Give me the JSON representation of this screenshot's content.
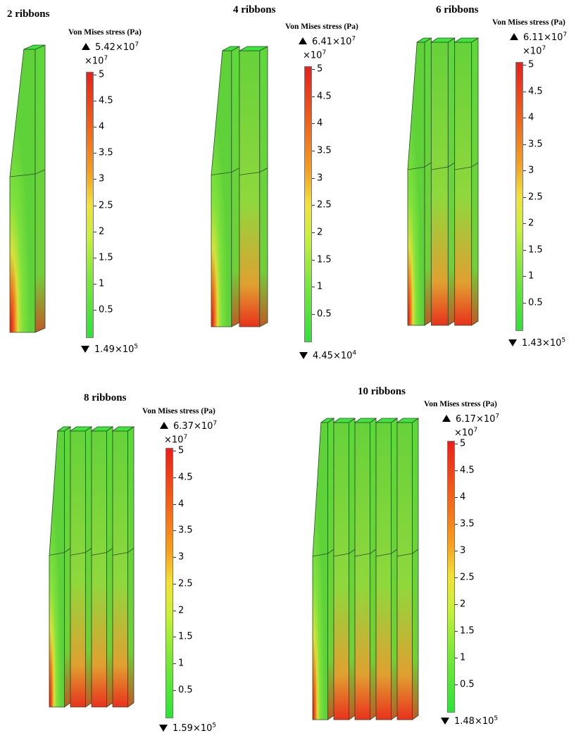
{
  "panels": [
    {
      "title": "2 ribbons",
      "legend_label": "Von Mises stress (Pa)",
      "max_mantissa": "5.42",
      "max_exp": "7",
      "scale_exp": "7",
      "min_mantissa": "1.49",
      "min_exp": "5",
      "ribbons": 1
    },
    {
      "title": "4 ribbons",
      "legend_label": "Von Mises stress (Pa)",
      "max_mantissa": "6.41",
      "max_exp": "7",
      "scale_exp": "7",
      "min_mantissa": "4.45",
      "min_exp": "4",
      "ribbons": 2
    },
    {
      "title": "6 ribbons",
      "legend_label": "Von Mises stress (Pa)",
      "max_mantissa": "6.11",
      "max_exp": "7",
      "scale_exp": "7",
      "min_mantissa": "1.43",
      "min_exp": "5",
      "ribbons": 3
    },
    {
      "title": "8 ribbons",
      "legend_label": "Von Mises stress (Pa)",
      "max_mantissa": "6.37",
      "max_exp": "7",
      "scale_exp": "7",
      "min_mantissa": "1.59",
      "min_exp": "5",
      "ribbons": 4
    },
    {
      "title": "10 ribbons",
      "legend_label": "Von Mises stress (Pa)",
      "max_mantissa": "6.17",
      "max_exp": "7",
      "scale_exp": "7",
      "min_mantissa": "1.48",
      "min_exp": "5",
      "ribbons": 5
    }
  ],
  "colorbar_ticks": [
    "5",
    "4.5",
    "4",
    "3.5",
    "3",
    "2.5",
    "2",
    "1.5",
    "1",
    "0.5"
  ],
  "multiplier_prefix": "×10",
  "colors": {
    "high": "#e8201b",
    "mid": "#f2e23a",
    "low": "#2ee23a",
    "body": "#5fd23a",
    "top": "#3ee63a"
  }
}
